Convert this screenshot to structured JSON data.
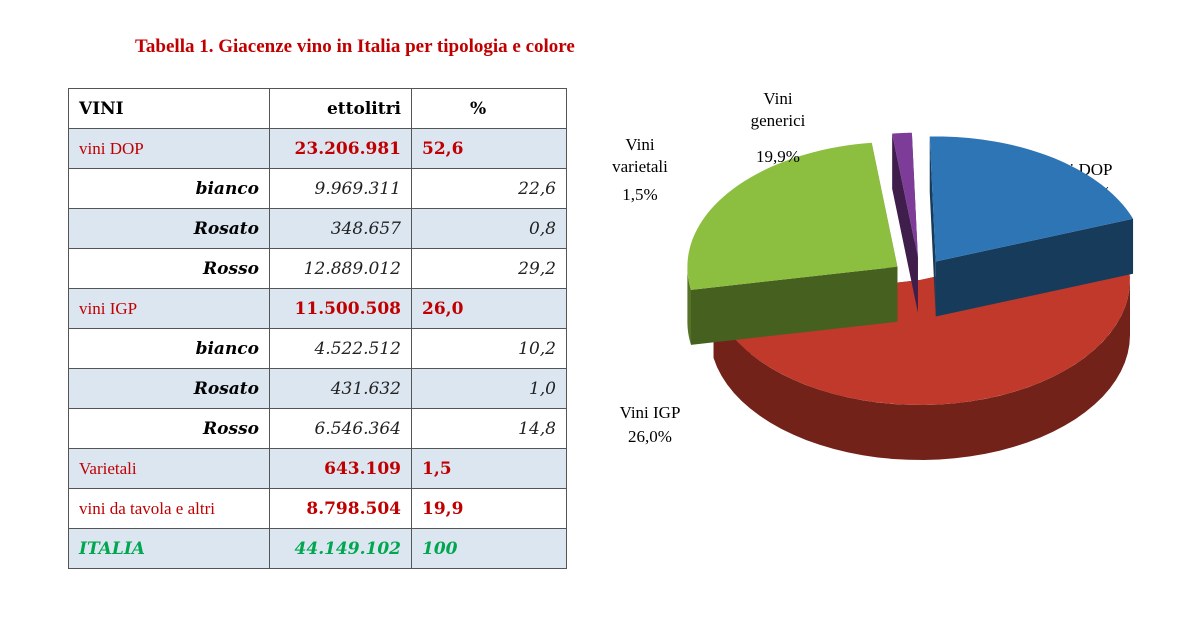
{
  "title": "Tabella 1. Giacenze vino in Italia per tipologia e colore",
  "table": {
    "headers": [
      "VINI",
      "ettolitri",
      "%"
    ],
    "rows": [
      {
        "label": "vini DOP",
        "hl": "23.206.981",
        "pct": "52,6",
        "kind": "cat",
        "shaded": true
      },
      {
        "label": "bianco",
        "hl": "9.969.311",
        "pct": "22,6",
        "kind": "sub",
        "shaded": false
      },
      {
        "label": "Rosato",
        "hl": "348.657",
        "pct": "0,8",
        "kind": "sub",
        "shaded": true
      },
      {
        "label": "Rosso",
        "hl": "12.889.012",
        "pct": "29,2",
        "kind": "sub",
        "shaded": false
      },
      {
        "label": "vini IGP",
        "hl": "11.500.508",
        "pct": "26,0",
        "kind": "cat",
        "shaded": true
      },
      {
        "label": "bianco",
        "hl": "4.522.512",
        "pct": "10,2",
        "kind": "sub",
        "shaded": false
      },
      {
        "label": "Rosato",
        "hl": "431.632",
        "pct": "1,0",
        "kind": "sub",
        "shaded": true
      },
      {
        "label": "Rosso",
        "hl": "6.546.364",
        "pct": "14,8",
        "kind": "sub",
        "shaded": false
      },
      {
        "label": "Varietali",
        "hl": "643.109",
        "pct": "1,5",
        "kind": "cat",
        "shaded": true
      },
      {
        "label": "vini da tavola e altri",
        "hl": "8.798.504",
        "pct": "19,9",
        "kind": "cat",
        "shaded": false
      },
      {
        "label": "ITALIA",
        "hl": "44.149.102",
        "pct": "100",
        "kind": "total",
        "shaded": true
      }
    ]
  },
  "chart_data": {
    "type": "pie",
    "slices": [
      {
        "label": "Vini DOP",
        "value": 52.6,
        "value_label": "52,6%",
        "color": "#c0392b",
        "exploded": false
      },
      {
        "label": "Vini IGP",
        "value": 26.0,
        "value_label": "26,0%",
        "color": "#8cbf3f",
        "exploded": true
      },
      {
        "label": "Vini varietali",
        "value": 1.5,
        "value_label": "1,5%",
        "color": "#7d3c98",
        "exploded": true
      },
      {
        "label": "Vini generici",
        "value": 19.9,
        "value_label": "19,9%",
        "color": "#2e75b6",
        "exploded": true
      }
    ]
  }
}
